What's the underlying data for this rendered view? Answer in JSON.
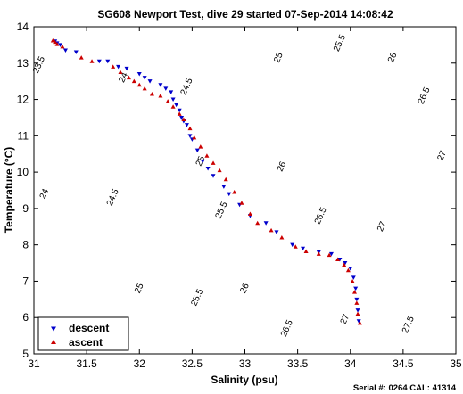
{
  "chart_data": {
    "type": "scatter",
    "title": "SG608 Newport Test, dive 29 started 07-Sep-2014 14:08:42",
    "xlabel": "Salinity (psu)",
    "ylabel": "Temperature (°C)",
    "xlim": [
      31,
      35
    ],
    "ylim": [
      5,
      14
    ],
    "xticks": [
      "31",
      "31.5",
      "32",
      "32.5",
      "33",
      "33.5",
      "34",
      "34.5",
      "35"
    ],
    "yticks": [
      "5",
      "6",
      "7",
      "8",
      "9",
      "10",
      "11",
      "12",
      "13",
      "14"
    ],
    "grid": false,
    "legend_position": "bottom-left",
    "footer": "Serial #: 0264  CAL: 41314",
    "contours": {
      "levels": [
        23.5,
        24,
        24.5,
        25,
        25.5,
        26,
        26.5,
        27,
        27.5
      ],
      "labels": [
        {
          "text": "23.5",
          "x": 31.05,
          "y": 12.95
        },
        {
          "text": "24",
          "x": 31.1,
          "y": 9.4
        },
        {
          "text": "24.5",
          "x": 31.75,
          "y": 9.3
        },
        {
          "text": "25",
          "x": 32.0,
          "y": 6.8
        },
        {
          "text": "25.5",
          "x": 32.55,
          "y": 6.55
        },
        {
          "text": "26",
          "x": 33.0,
          "y": 6.8
        },
        {
          "text": "26.5",
          "x": 33.4,
          "y": 5.7
        },
        {
          "text": "27",
          "x": 33.95,
          "y": 5.95
        },
        {
          "text": "27.5",
          "x": 34.55,
          "y": 5.8
        },
        {
          "text": "24",
          "x": 31.85,
          "y": 12.6
        },
        {
          "text": "24.5",
          "x": 32.45,
          "y": 12.35
        },
        {
          "text": "25",
          "x": 32.58,
          "y": 10.3
        },
        {
          "text": "25.5",
          "x": 32.78,
          "y": 8.95
        },
        {
          "text": "26",
          "x": 33.35,
          "y": 10.15
        },
        {
          "text": "26.5",
          "x": 33.72,
          "y": 8.8
        },
        {
          "text": "27",
          "x": 34.3,
          "y": 8.5
        },
        {
          "text": "25",
          "x": 33.32,
          "y": 13.15
        },
        {
          "text": "25.5",
          "x": 33.9,
          "y": 13.55
        },
        {
          "text": "26",
          "x": 34.4,
          "y": 13.15
        },
        {
          "text": "26.5",
          "x": 34.7,
          "y": 12.1
        },
        {
          "text": "27",
          "x": 34.87,
          "y": 10.45
        }
      ]
    },
    "series": [
      {
        "name": "descent",
        "marker": "triangle-down",
        "color": "#0000cc",
        "points": [
          [
            31.2,
            13.6
          ],
          [
            31.22,
            13.55
          ],
          [
            31.25,
            13.5
          ],
          [
            31.3,
            13.35
          ],
          [
            31.4,
            13.3
          ],
          [
            31.62,
            13.05
          ],
          [
            31.7,
            13.05
          ],
          [
            31.8,
            12.9
          ],
          [
            31.88,
            12.85
          ],
          [
            32.0,
            12.7
          ],
          [
            32.05,
            12.6
          ],
          [
            32.1,
            12.5
          ],
          [
            32.2,
            12.4
          ],
          [
            32.25,
            12.3
          ],
          [
            32.3,
            12.2
          ],
          [
            32.32,
            12.0
          ],
          [
            32.35,
            11.85
          ],
          [
            32.38,
            11.7
          ],
          [
            32.4,
            11.5
          ],
          [
            32.42,
            11.4
          ],
          [
            32.45,
            11.3
          ],
          [
            32.48,
            11.0
          ],
          [
            32.5,
            10.9
          ],
          [
            32.55,
            10.6
          ],
          [
            32.6,
            10.3
          ],
          [
            32.65,
            10.1
          ],
          [
            32.7,
            9.9
          ],
          [
            32.8,
            9.6
          ],
          [
            32.85,
            9.4
          ],
          [
            32.95,
            9.1
          ],
          [
            33.05,
            8.8
          ],
          [
            33.2,
            8.6
          ],
          [
            33.3,
            8.35
          ],
          [
            33.45,
            8.0
          ],
          [
            33.55,
            7.9
          ],
          [
            33.7,
            7.8
          ],
          [
            33.82,
            7.75
          ],
          [
            33.9,
            7.6
          ],
          [
            33.95,
            7.5
          ],
          [
            34.0,
            7.35
          ],
          [
            34.03,
            7.1
          ],
          [
            34.05,
            6.8
          ],
          [
            34.06,
            6.5
          ],
          [
            34.07,
            6.2
          ],
          [
            34.08,
            5.9
          ]
        ]
      },
      {
        "name": "ascent",
        "marker": "triangle-up",
        "color": "#cc0000",
        "points": [
          [
            31.18,
            13.62
          ],
          [
            31.2,
            13.58
          ],
          [
            31.22,
            13.52
          ],
          [
            31.27,
            13.45
          ],
          [
            31.45,
            13.15
          ],
          [
            31.55,
            13.05
          ],
          [
            31.75,
            12.9
          ],
          [
            31.82,
            12.75
          ],
          [
            31.9,
            12.6
          ],
          [
            31.95,
            12.5
          ],
          [
            32.0,
            12.4
          ],
          [
            32.05,
            12.3
          ],
          [
            32.12,
            12.15
          ],
          [
            32.2,
            12.1
          ],
          [
            32.27,
            11.95
          ],
          [
            32.32,
            11.8
          ],
          [
            32.38,
            11.6
          ],
          [
            32.42,
            11.45
          ],
          [
            32.48,
            11.2
          ],
          [
            32.52,
            10.95
          ],
          [
            32.58,
            10.7
          ],
          [
            32.64,
            10.45
          ],
          [
            32.7,
            10.25
          ],
          [
            32.76,
            10.05
          ],
          [
            32.82,
            9.8
          ],
          [
            32.9,
            9.45
          ],
          [
            32.97,
            9.15
          ],
          [
            33.05,
            8.85
          ],
          [
            33.12,
            8.6
          ],
          [
            33.25,
            8.4
          ],
          [
            33.35,
            8.2
          ],
          [
            33.48,
            7.95
          ],
          [
            33.58,
            7.82
          ],
          [
            33.7,
            7.75
          ],
          [
            33.8,
            7.72
          ],
          [
            33.88,
            7.6
          ],
          [
            33.94,
            7.45
          ],
          [
            33.98,
            7.3
          ],
          [
            34.02,
            7.0
          ],
          [
            34.04,
            6.7
          ],
          [
            34.06,
            6.4
          ],
          [
            34.07,
            6.1
          ],
          [
            34.09,
            5.85
          ]
        ]
      }
    ]
  }
}
